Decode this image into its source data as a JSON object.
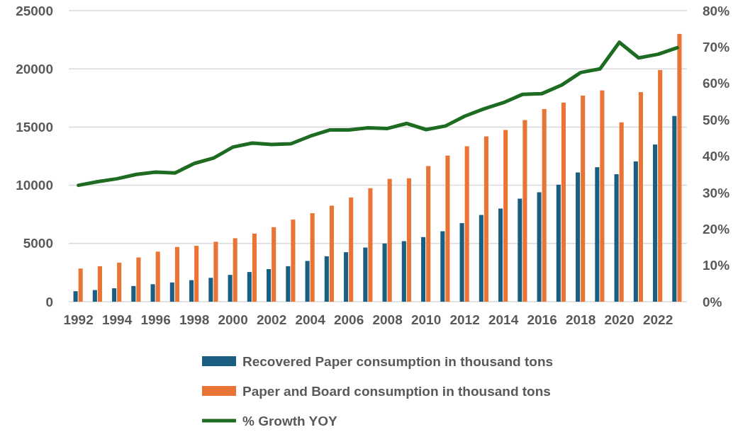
{
  "chart_data": {
    "type": "bar",
    "categories": [
      "1992",
      null,
      "1994",
      null,
      "1996",
      null,
      "1998",
      null,
      "2000",
      null,
      "2002",
      null,
      "2004",
      null,
      "2006",
      null,
      "2008",
      null,
      "2010",
      null,
      "2012",
      null,
      "2014",
      null,
      "2016",
      null,
      "2018",
      null,
      "2020",
      null,
      "2022",
      null
    ],
    "series": [
      {
        "name": "Recovered Paper consumption in thousand tons",
        "color": "#1a5f82",
        "values": [
          900,
          1000,
          1150,
          1350,
          1500,
          1650,
          1850,
          2050,
          2300,
          2550,
          2800,
          3050,
          3500,
          3900,
          4250,
          4650,
          5000,
          5200,
          5550,
          6050,
          6750,
          7450,
          8000,
          8850,
          9400,
          10050,
          11100,
          11550,
          10950,
          12050,
          13500,
          15950
        ]
      },
      {
        "name": "Paper and Board consumption in thousand tons",
        "color": "#ea7433",
        "values": [
          2850,
          3050,
          3350,
          3800,
          4300,
          4700,
          4800,
          5150,
          5450,
          5850,
          6400,
          7050,
          7600,
          8250,
          8950,
          9750,
          10550,
          10600,
          11650,
          12550,
          13350,
          14200,
          14750,
          15600,
          16550,
          17100,
          17700,
          18150,
          15400,
          18000,
          19900,
          23000
        ]
      },
      {
        "name": "% Growth YOY",
        "type": "line",
        "axis": "y2",
        "color": "#1e6b22",
        "values": [
          32,
          33,
          33.8,
          35,
          35.6,
          35.4,
          38,
          39.5,
          42.5,
          43.6,
          43.2,
          43.4,
          45.5,
          47.2,
          47.2,
          47.8,
          47.6,
          49,
          47.3,
          48.3,
          51,
          53,
          54.7,
          57,
          57.2,
          59.5,
          63,
          64,
          71.3,
          67,
          68,
          69.8
        ]
      }
    ],
    "ylim": [
      0,
      25000
    ],
    "yticks": [
      0,
      5000,
      10000,
      15000,
      20000,
      25000
    ],
    "y2lim": [
      0,
      80
    ],
    "y2ticks": [
      {
        "value": 0,
        "label": "0%"
      },
      {
        "value": 10,
        "label": "10%"
      },
      {
        "value": 20,
        "label": "20%"
      },
      {
        "value": 30,
        "label": "30%"
      },
      {
        "value": 40,
        "label": "40%"
      },
      {
        "value": 50,
        "label": "50%"
      },
      {
        "value": 60,
        "label": "60%"
      },
      {
        "value": 70,
        "label": "70%"
      },
      {
        "value": 80,
        "label": "80%"
      }
    ],
    "grid": "y",
    "legend": "bottom"
  }
}
